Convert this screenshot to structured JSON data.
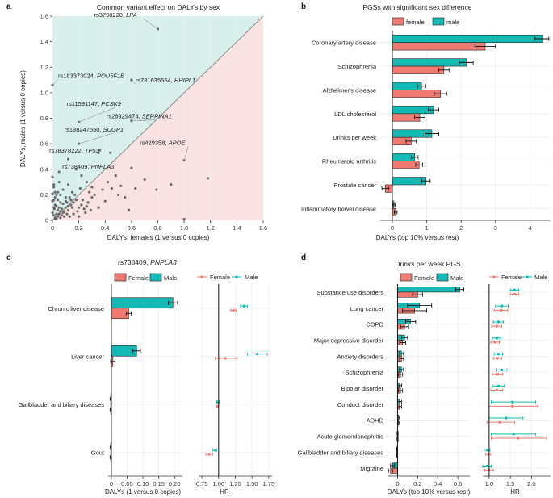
{
  "colors": {
    "female": "#f07a72",
    "male": "#14b8b4",
    "female_region": "#f8e3e2",
    "male_region": "#d9efec",
    "points": "#555555",
    "diag": "#8a8a8a"
  },
  "panels": {
    "a": {
      "label": "a"
    },
    "b": {
      "label": "b"
    },
    "c": {
      "label": "c"
    },
    "d": {
      "label": "d"
    }
  },
  "chart_data": [
    {
      "id": "a",
      "type": "scatter",
      "title": "Common variant effect on DALYs by sex",
      "xlabel": "DALYs, females (1 versus 0 copies)",
      "ylabel": "DALYs, males (1 versus 0 copies)",
      "xlim": [
        0,
        1.6
      ],
      "ylim": [
        0,
        1.6
      ],
      "xticks": [
        "0",
        "0.2",
        "0.4",
        "0.6",
        "0.8",
        "1.0",
        "1.2",
        "1.4",
        "1.6"
      ],
      "yticks": [
        "0",
        "0.2",
        "0.4",
        "0.6",
        "0.8",
        "1.0",
        "1.2",
        "1.4",
        "1.6"
      ],
      "annotations": [
        {
          "id": "rs3798220",
          "gene": "LPA",
          "x": 0.8,
          "y": 1.5
        },
        {
          "id": "rs183373024",
          "gene": "POU5F1B",
          "x": 0.0,
          "y": 1.06
        },
        {
          "id": "rs781635564",
          "gene": "HHIPL1",
          "x": 0.6,
          "y": 1.1
        },
        {
          "id": "rs11591147",
          "gene": "PCSK9",
          "x": 0.2,
          "y": 0.77
        },
        {
          "id": "rs28929474",
          "gene": "SERPINA1",
          "x": 0.6,
          "y": 0.78
        },
        {
          "id": "rs188247550",
          "gene": "SUGP1",
          "x": 0.2,
          "y": 0.6
        },
        {
          "id": "rs78378222",
          "gene": "TP53",
          "x": 0.35,
          "y": 0.53
        },
        {
          "id": "rs429358",
          "gene": "APOE",
          "x": 1.0,
          "y": 0.47
        },
        {
          "id": "rs738409",
          "gene": "PNPLA3",
          "x": 0.05,
          "y": 0.38
        }
      ],
      "points": [
        [
          0.8,
          1.5
        ],
        [
          0.0,
          1.06
        ],
        [
          0.6,
          1.1
        ],
        [
          0.2,
          0.77
        ],
        [
          0.6,
          0.78
        ],
        [
          0.2,
          0.6
        ],
        [
          0.35,
          0.53
        ],
        [
          1.0,
          0.47
        ],
        [
          0.05,
          0.38
        ],
        [
          0.44,
          0.53
        ],
        [
          0.36,
          0.55
        ],
        [
          0.12,
          0.28
        ],
        [
          0.15,
          0.22
        ],
        [
          0.12,
          0.48
        ],
        [
          0.6,
          0.41
        ],
        [
          0.7,
          0.32
        ],
        [
          0.63,
          0.25
        ],
        [
          0.9,
          0.28
        ],
        [
          1.18,
          0.33
        ],
        [
          0.79,
          0.24
        ],
        [
          0.58,
          0.08
        ],
        [
          1.0,
          0.01
        ],
        [
          0.3,
          0.26
        ],
        [
          0.26,
          0.3
        ],
        [
          0.45,
          0.25
        ],
        [
          0.5,
          0.2
        ],
        [
          0.4,
          0.15
        ],
        [
          0.35,
          0.1
        ],
        [
          0.25,
          0.06
        ],
        [
          0.22,
          0.12
        ],
        [
          0.18,
          0.16
        ],
        [
          0.3,
          0.18
        ],
        [
          0.28,
          0.22
        ],
        [
          0.1,
          0.18
        ],
        [
          0.08,
          0.24
        ],
        [
          0.05,
          0.3
        ],
        [
          0.03,
          0.2
        ],
        [
          0.02,
          0.12
        ],
        [
          0.06,
          0.14
        ],
        [
          0.04,
          0.08
        ],
        [
          0.01,
          0.04
        ],
        [
          0.02,
          0.02
        ],
        [
          0.08,
          0.06
        ],
        [
          0.1,
          0.1
        ],
        [
          0.12,
          0.08
        ],
        [
          0.14,
          0.12
        ],
        [
          0.16,
          0.05
        ],
        [
          0.2,
          0.03
        ],
        [
          0.06,
          0.02
        ],
        [
          0.09,
          0.03
        ],
        [
          0.03,
          0.05
        ],
        [
          0.05,
          0.05
        ],
        [
          0.07,
          0.09
        ],
        [
          0.11,
          0.14
        ],
        [
          0.13,
          0.18
        ],
        [
          0.15,
          0.1
        ],
        [
          0.04,
          0.16
        ],
        [
          0.02,
          0.22
        ],
        [
          0.01,
          0.1
        ],
        [
          0.06,
          0.2
        ],
        [
          0.0,
          0.34
        ],
        [
          0.01,
          0.28
        ],
        [
          0.18,
          0.4
        ],
        [
          0.22,
          0.35
        ],
        [
          0.27,
          0.14
        ],
        [
          0.32,
          0.2
        ],
        [
          0.38,
          0.24
        ],
        [
          0.42,
          0.3
        ],
        [
          0.48,
          0.35
        ],
        [
          0.52,
          0.27
        ],
        [
          0.55,
          0.18
        ],
        [
          0.24,
          0.09
        ],
        [
          0.19,
          0.07
        ],
        [
          0.17,
          0.2
        ],
        [
          0.21,
          0.25
        ],
        [
          0.03,
          0.01
        ],
        [
          0.04,
          0.03
        ],
        [
          0.0,
          0.06
        ],
        [
          0.0,
          0.15
        ],
        [
          0.01,
          0.26
        ],
        [
          0.02,
          0.01
        ],
        [
          0.05,
          0.1
        ],
        [
          0.08,
          0.13
        ],
        [
          0.07,
          0.04
        ],
        [
          0.09,
          0.07
        ],
        [
          0.11,
          0.05
        ],
        [
          0.13,
          0.03
        ],
        [
          0.12,
          0.11
        ],
        [
          0.1,
          0.15
        ],
        [
          0.14,
          0.16
        ],
        [
          0.16,
          0.14
        ],
        [
          0.2,
          0.1
        ],
        [
          0.23,
          0.16
        ],
        [
          0.26,
          0.11
        ],
        [
          0.29,
          0.08
        ],
        [
          0.03,
          0.11
        ],
        [
          0.06,
          0.07
        ],
        [
          0.01,
          0.16
        ],
        [
          0.02,
          0.18
        ],
        [
          0.04,
          0.22
        ],
        [
          0.0,
          0.21
        ],
        [
          0.015,
          0.09
        ]
      ]
    },
    {
      "id": "b",
      "type": "bar",
      "orientation": "horizontal",
      "title": "PGSs with significant sex difference",
      "legend": [
        "female",
        "male"
      ],
      "xlabel": "DALYs (top 10% versus rest)",
      "xlim": [
        -0.35,
        4.6
      ],
      "xticks": [
        0,
        1,
        2,
        3,
        4
      ],
      "categories": [
        "Coronary artery disease",
        "Schizophrenia",
        "Alzheimer's disease",
        "LDL cholesterol",
        "Drinks per week",
        "Rheumatoid arthritis",
        "Prostate cancer",
        "Inflammatory bowel disease"
      ],
      "series": [
        {
          "name": "male",
          "values": [
            4.35,
            2.15,
            0.85,
            1.2,
            1.15,
            0.65,
            0.98,
            0.05
          ],
          "err": [
            0.2,
            0.2,
            0.12,
            0.15,
            0.2,
            0.1,
            0.12,
            0.03
          ]
        },
        {
          "name": "female",
          "values": [
            2.7,
            1.5,
            1.4,
            0.8,
            0.55,
            0.78,
            -0.2,
            0.1
          ],
          "err": [
            0.3,
            0.15,
            0.18,
            0.15,
            0.15,
            0.1,
            0.1,
            0.04
          ]
        }
      ]
    },
    {
      "id": "c",
      "type": "bar",
      "orientation": "horizontal",
      "title": "rs738409, PNPLA3",
      "legend": [
        "Female",
        "Male"
      ],
      "xlabel": "DALYs (1 versus 0 copies)",
      "xlim": [
        -0.01,
        0.225
      ],
      "xticks": [
        "0",
        "0.05",
        "0.10",
        "0.15",
        "0.20"
      ],
      "categories": [
        "Chronic liver disease",
        "Liver cancer",
        "Gallbladder and biliary diseases",
        "Gout"
      ],
      "series": [
        {
          "name": "Male",
          "values": [
            0.195,
            0.08,
            -0.002,
            -0.002
          ],
          "err": [
            0.015,
            0.012,
            0.002,
            0.002
          ]
        },
        {
          "name": "Female",
          "values": [
            0.055,
            0.005,
            -0.002,
            -0.002
          ],
          "err": [
            0.008,
            0.007,
            0.002,
            0.002
          ]
        }
      ],
      "hr": {
        "xlabel": "HR",
        "xlim": [
          0.7,
          1.8
        ],
        "xticks": [
          "0.75",
          "1.00",
          "1.25",
          "1.50",
          "1.75"
        ],
        "legend": [
          "Female",
          "Male"
        ],
        "series": [
          {
            "name": "Male",
            "values": [
              1.38,
              1.58,
              0.99,
              0.94
            ],
            "lo": [
              1.33,
              1.43,
              0.97,
              0.91
            ],
            "hi": [
              1.43,
              1.73,
              1.01,
              0.97
            ]
          },
          {
            "name": "Female",
            "values": [
              1.22,
              1.1,
              0.98,
              0.86
            ],
            "lo": [
              1.18,
              0.95,
              0.96,
              0.81
            ],
            "hi": [
              1.26,
              1.27,
              1.0,
              0.91
            ]
          }
        ]
      }
    },
    {
      "id": "d",
      "type": "bar",
      "orientation": "horizontal",
      "title": "Drinks per week PGS",
      "legend": [
        "Female",
        "Male"
      ],
      "xlabel": "DALYs (top 10% versus rest)",
      "xlim": [
        -0.1,
        0.72
      ],
      "xticks": [
        "0",
        "0.2",
        "0.4",
        "0.6"
      ],
      "categories": [
        "Substance use disorders",
        "Lung cancer",
        "COPD",
        "Major depressive disorder",
        "Anxiety disorders",
        "Schizophrenia",
        "Bipolar disorder",
        "Conduct disorder",
        "ADHD",
        "Acute glomerulonephritis",
        "Gallbladder and biliary diseases",
        "Migraine"
      ],
      "series": [
        {
          "name": "Male",
          "values": [
            0.62,
            0.22,
            0.13,
            0.07,
            0.04,
            0.04,
            0.02,
            0.02,
            0.01,
            0.0,
            -0.01,
            -0.05
          ],
          "err": [
            0.04,
            0.12,
            0.05,
            0.03,
            0.02,
            0.02,
            0.02,
            0.02,
            0.01,
            0.005,
            0.005,
            0.02
          ]
        },
        {
          "name": "Female",
          "values": [
            0.2,
            0.17,
            0.07,
            0.05,
            0.04,
            0.03,
            0.03,
            0.02,
            0.01,
            0.0,
            -0.01,
            -0.07
          ],
          "err": [
            0.05,
            0.12,
            0.04,
            0.03,
            0.02,
            0.02,
            0.02,
            0.02,
            0.01,
            0.005,
            0.005,
            0.02
          ]
        }
      ],
      "hr": {
        "xlabel": "HR",
        "xlim": [
          0.85,
          2.45
        ],
        "xticks": [
          "1.0",
          "1.5",
          "2.0"
        ],
        "legend": [
          "Female",
          "Male"
        ],
        "series": [
          {
            "name": "Male",
            "values": [
              1.6,
              1.3,
              1.22,
              1.18,
              1.22,
              1.3,
              1.22,
              1.55,
              1.4,
              1.58,
              0.95,
              0.95
            ],
            "lo": [
              1.5,
              1.15,
              1.1,
              1.08,
              1.12,
              1.18,
              1.08,
              1.05,
              1.0,
              1.05,
              0.88,
              0.85
            ],
            "hi": [
              1.7,
              1.45,
              1.34,
              1.28,
              1.32,
              1.42,
              1.36,
              2.1,
              1.8,
              2.1,
              1.02,
              1.05
            ]
          },
          {
            "name": "Female",
            "values": [
              1.6,
              1.28,
              1.18,
              1.14,
              1.2,
              1.2,
              1.18,
              1.55,
              1.25,
              1.68,
              0.98,
              1.0
            ],
            "lo": [
              1.5,
              1.12,
              1.06,
              1.04,
              1.1,
              1.08,
              1.04,
              1.0,
              0.95,
              1.05,
              0.92,
              0.9
            ],
            "hi": [
              1.7,
              1.44,
              1.3,
              1.24,
              1.3,
              1.32,
              1.32,
              2.15,
              1.6,
              2.35,
              1.04,
              1.1
            ]
          }
        ]
      }
    }
  ]
}
